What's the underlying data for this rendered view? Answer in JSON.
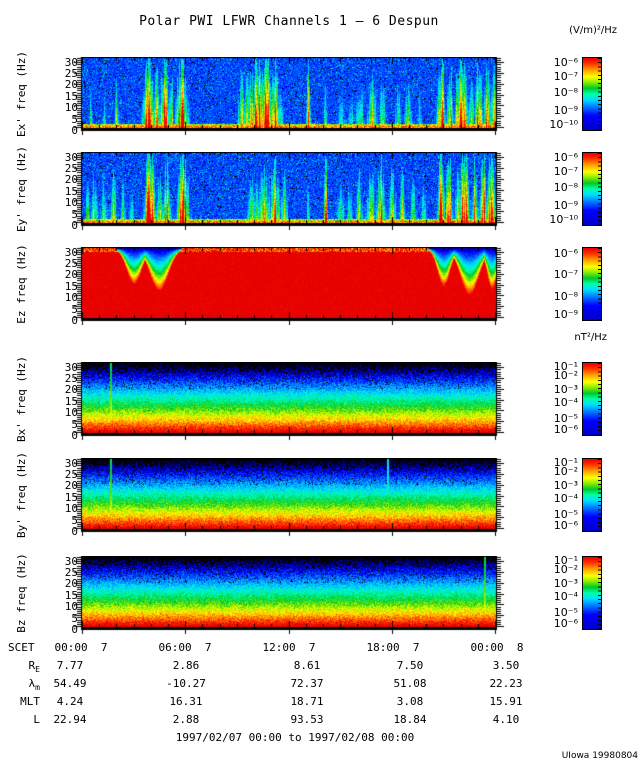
{
  "title": "Polar PWI LFWR Channels 1 — 6 Despun",
  "credit": "UIowa 19980804",
  "units": {
    "electric": "(V/m)²/Hz",
    "magnetic": "nT²/Hz"
  },
  "chart_data": {
    "type": "heatmap",
    "title": "Polar PWI LFWR Channels 1 — 6 Despun",
    "time_range": "1997/02/07 00:00 to 1997/02/08 00:00",
    "x_axis": {
      "label": "SCET",
      "ticks": [
        "00:00",
        "06:00",
        "12:00",
        "18:00",
        "00:00"
      ],
      "tick_days": [
        "7",
        "7",
        "7",
        "7",
        "8"
      ],
      "hours": [
        0,
        6,
        12,
        18,
        24
      ]
    },
    "y_axis": {
      "ticks": [
        30,
        25,
        20,
        15,
        10,
        5,
        0
      ],
      "range": [
        0,
        32
      ],
      "unit": "Hz"
    },
    "panels": [
      {
        "id": "ex",
        "label": "Ex' freq (Hz)",
        "kind": "e",
        "seed": 11,
        "colorbar_labels": [
          "10⁻⁶",
          "10⁻⁷",
          "10⁻⁸",
          "10⁻⁹",
          "10⁻¹⁰"
        ],
        "colorbar_fracs": [
          0.03,
          0.22,
          0.43,
          0.67,
          0.86
        ],
        "bursts": [
          [
            0.5,
            0.5,
            0.08
          ],
          [
            1.3,
            0.45,
            0.08
          ],
          [
            2.0,
            0.55,
            0.1
          ],
          [
            3.85,
            1,
            0.24
          ],
          [
            4.3,
            0.85,
            0.12
          ],
          [
            4.75,
            0.9,
            0.2
          ],
          [
            5.15,
            0.7,
            0.1
          ],
          [
            5.75,
            1,
            0.26
          ],
          [
            9.25,
            0.65,
            0.2
          ],
          [
            9.7,
            0.8,
            0.24
          ],
          [
            10.2,
            0.95,
            0.29
          ],
          [
            10.7,
            1,
            0.24
          ],
          [
            11.15,
            0.85,
            0.2
          ],
          [
            11.5,
            0.6,
            0.12
          ],
          [
            13.1,
            0.9,
            0.09
          ],
          [
            14.1,
            0.6,
            0.07
          ],
          [
            15.0,
            0.55,
            0.15
          ],
          [
            15.55,
            0.5,
            0.12
          ],
          [
            16.1,
            0.6,
            0.17
          ],
          [
            16.8,
            0.65,
            0.22
          ],
          [
            17.4,
            0.55,
            0.15
          ],
          [
            18.3,
            0.5,
            0.15
          ],
          [
            18.9,
            0.55,
            0.17
          ],
          [
            19.55,
            0.45,
            0.12
          ],
          [
            20.8,
            1,
            0.17
          ],
          [
            21.3,
            0.9,
            0.12
          ],
          [
            21.7,
            0.7,
            0.1
          ],
          [
            22.0,
            1,
            0.22
          ],
          [
            22.55,
            0.8,
            0.12
          ],
          [
            23.0,
            0.95,
            0.17
          ],
          [
            23.45,
            0.75,
            0.15
          ],
          [
            23.85,
            0.85,
            0.15
          ]
        ]
      },
      {
        "id": "ey",
        "label": "Ey' freq (Hz)",
        "kind": "e",
        "seed": 22,
        "colorbar_labels": [
          "10⁻⁶",
          "10⁻⁷",
          "10⁻⁸",
          "10⁻⁹",
          "10⁻¹⁰"
        ],
        "colorbar_fracs": [
          0.03,
          0.22,
          0.43,
          0.67,
          0.86
        ],
        "bursts": [
          [
            0.3,
            0.55,
            0.1
          ],
          [
            0.7,
            0.6,
            0.15
          ],
          [
            1.25,
            0.55,
            0.17
          ],
          [
            1.8,
            0.6,
            0.15
          ],
          [
            2.35,
            0.5,
            0.12
          ],
          [
            2.85,
            0.45,
            0.1
          ],
          [
            3.9,
            1,
            0.24
          ],
          [
            4.45,
            0.65,
            0.15
          ],
          [
            4.9,
            0.75,
            0.2
          ],
          [
            5.85,
            1,
            0.26
          ],
          [
            9.95,
            0.6,
            0.29
          ],
          [
            10.55,
            0.7,
            0.29
          ],
          [
            11.15,
            0.75,
            0.24
          ],
          [
            11.7,
            0.6,
            0.17
          ],
          [
            13.1,
            0.55,
            0.07
          ],
          [
            14.1,
            0.85,
            0.08
          ],
          [
            14.95,
            0.6,
            0.17
          ],
          [
            15.5,
            0.55,
            0.12
          ],
          [
            16.05,
            0.6,
            0.15
          ],
          [
            16.7,
            0.7,
            0.2
          ],
          [
            17.3,
            0.8,
            0.2
          ],
          [
            17.95,
            0.7,
            0.17
          ],
          [
            18.55,
            0.6,
            0.15
          ],
          [
            19.2,
            0.55,
            0.15
          ],
          [
            19.8,
            0.5,
            0.12
          ],
          [
            20.8,
            1,
            0.17
          ],
          [
            21.25,
            0.95,
            0.15
          ],
          [
            21.8,
            0.85,
            0.15
          ],
          [
            22.15,
            1,
            0.2
          ],
          [
            22.75,
            0.75,
            0.15
          ],
          [
            23.25,
            0.9,
            0.17
          ],
          [
            23.7,
            0.95,
            0.2
          ]
        ]
      },
      {
        "id": "ez",
        "label": "Ez freq (Hz)",
        "kind": "ez",
        "seed": 33,
        "colorbar_labels": [
          "10⁻⁶",
          "10⁻⁷",
          "10⁻⁸",
          "10⁻⁹"
        ],
        "colorbar_fracs": [
          0.04,
          0.32,
          0.62,
          0.86
        ],
        "notches": [
          [
            3.0,
            0.43,
            0.52
          ],
          [
            4.45,
            0.53,
            0.62
          ],
          [
            20.95,
            0.36,
            0.55
          ],
          [
            22.45,
            0.53,
            0.68
          ],
          [
            23.75,
            0.29,
            0.6
          ]
        ]
      },
      {
        "id": "bx",
        "label": "Bx' freq (Hz)",
        "kind": "b",
        "seed": 44,
        "colorbar_labels": [
          "10⁻¹",
          "10⁻²",
          "10⁻³",
          "10⁻⁴",
          "10⁻⁵",
          "10⁻⁶"
        ],
        "colorbar_fracs": [
          0.02,
          0.14,
          0.32,
          0.5,
          0.72,
          0.86
        ],
        "spikes": [
          [
            1.68,
            1
          ]
        ]
      },
      {
        "id": "by",
        "label": "By' freq (Hz)",
        "kind": "b",
        "seed": 55,
        "colorbar_labels": [
          "10⁻¹",
          "10⁻²",
          "10⁻³",
          "10⁻⁴",
          "10⁻⁵",
          "10⁻⁶"
        ],
        "colorbar_fracs": [
          0.02,
          0.14,
          0.32,
          0.5,
          0.72,
          0.86
        ],
        "spikes": [
          [
            1.68,
            1
          ],
          [
            17.7,
            0.5
          ]
        ]
      },
      {
        "id": "bz",
        "label": "Bz freq (Hz)",
        "kind": "b",
        "seed": 66,
        "colorbar_labels": [
          "10⁻¹",
          "10⁻²",
          "10⁻³",
          "10⁻⁴",
          "10⁻⁵",
          "10⁻⁶"
        ],
        "colorbar_fracs": [
          0.02,
          0.14,
          0.32,
          0.5,
          0.72,
          0.86
        ],
        "spikes": [
          [
            23.33,
            1
          ]
        ]
      }
    ],
    "ephemeris": {
      "rows": [
        {
          "label": "R",
          "sub": "E",
          "values": [
            "7.77",
            "2.86",
            "8.61",
            "7.50",
            "3.50"
          ]
        },
        {
          "label": "λ",
          "sub": "m",
          "values": [
            "54.49",
            "-10.27",
            "72.37",
            "51.08",
            "22.23"
          ]
        },
        {
          "label": "MLT",
          "sub": "",
          "values": [
            "4.24",
            "16.31",
            "18.71",
            "3.08",
            "15.91"
          ]
        },
        {
          "label": "L",
          "sub": "",
          "values": [
            "22.94",
            "2.88",
            "93.53",
            "18.84",
            "4.10"
          ]
        }
      ]
    }
  }
}
